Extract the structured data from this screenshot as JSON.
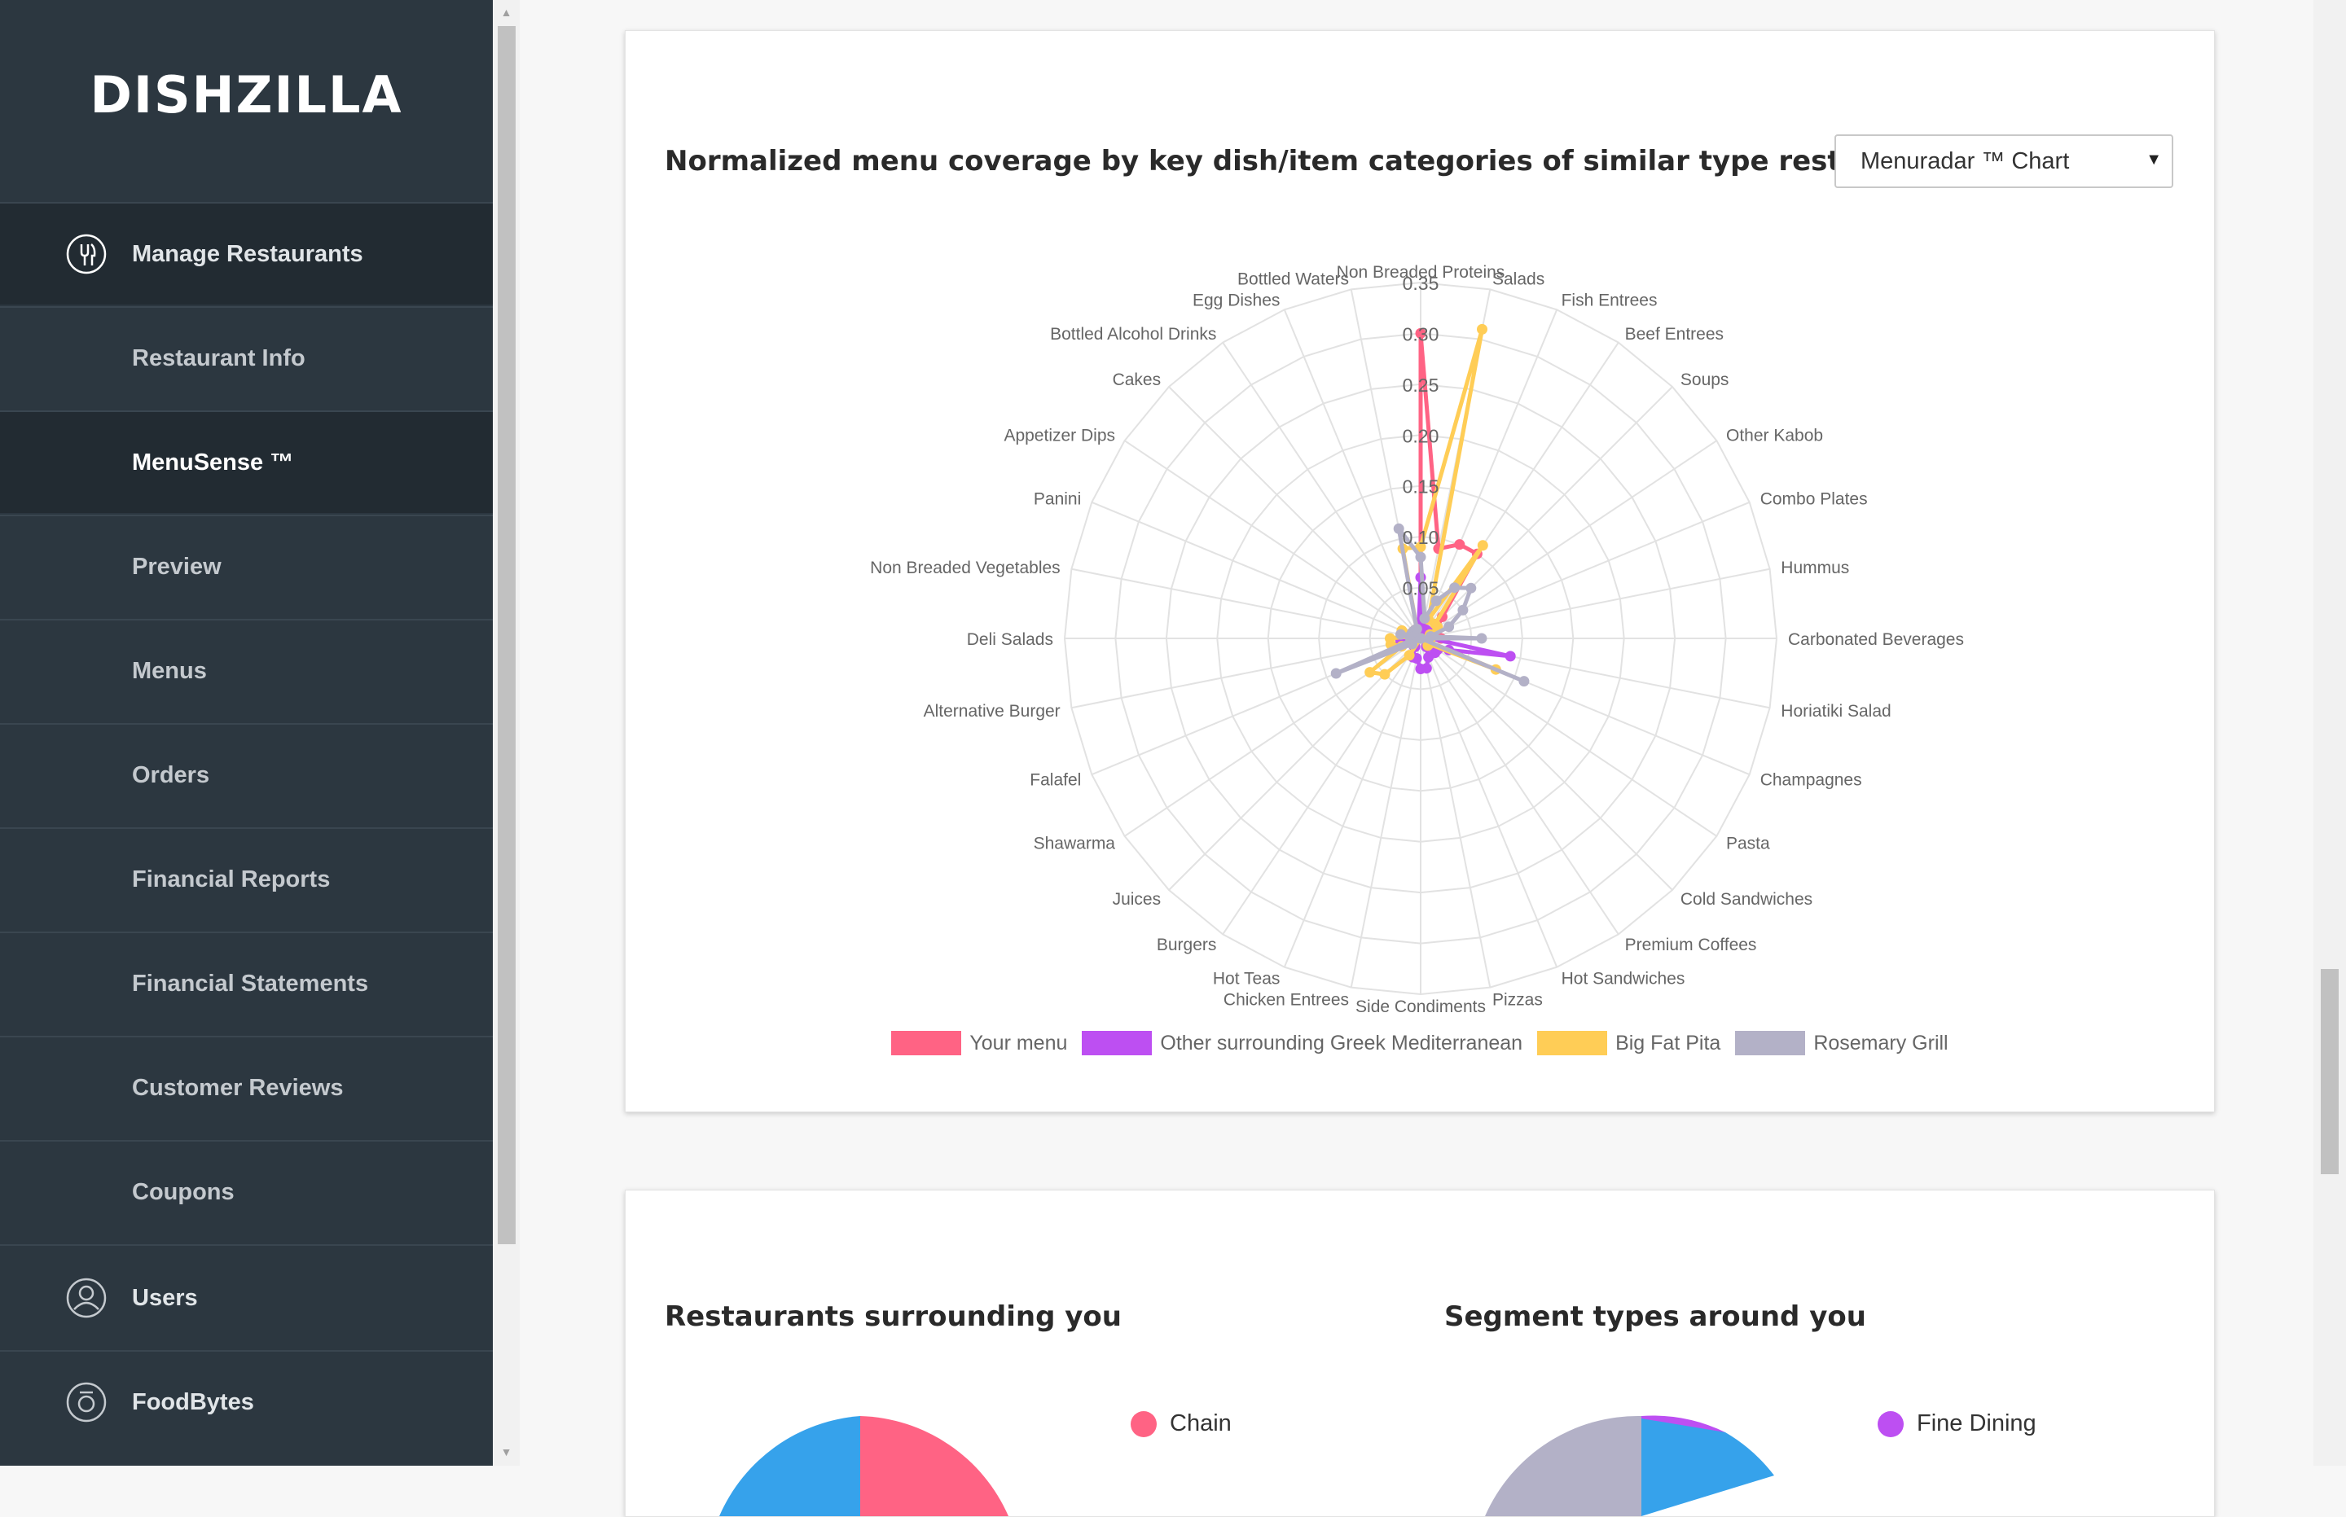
{
  "sidebar": {
    "logo": "DISHZILLA",
    "items": [
      {
        "label": "Manage Restaurants",
        "icon": "utensils-icon"
      },
      {
        "label": "Restaurant Info"
      },
      {
        "label": "MenuSense ™"
      },
      {
        "label": "Preview"
      },
      {
        "label": "Menus"
      },
      {
        "label": "Orders"
      },
      {
        "label": "Financial Reports"
      },
      {
        "label": "Financial Statements"
      },
      {
        "label": "Customer Reviews"
      },
      {
        "label": "Coupons"
      },
      {
        "label": "Users",
        "icon": "user-icon"
      },
      {
        "label": "FoodBytes",
        "icon": "camera-icon"
      }
    ]
  },
  "chart_card": {
    "title": "Normalized menu coverage by key dish/item categories of similar type restaurants",
    "select_value": "Menuradar ™ Chart"
  },
  "chart_data": {
    "type": "radar",
    "categories": [
      "Non Breaded Proteins",
      "Salads",
      "Fish Entrees",
      "Beef Entrees",
      "Soups",
      "Other Kabob",
      "Combo Plates",
      "Hummus",
      "Carbonated Beverages",
      "Horiatiki Salad",
      "Champagnes",
      "Pasta",
      "Cold Sandwiches",
      "Premium Coffees",
      "Hot Sandwiches",
      "Pizzas",
      "Side Condiments",
      "Chicken Entrees",
      "Hot Teas",
      "Burgers",
      "Juices",
      "Shawarma",
      "Falafel",
      "Alternative Burger",
      "Deli Salads",
      "Non Breaded Vegetables",
      "Panini",
      "Appetizer Dips",
      "Cakes",
      "Bottled Alcohol Drinks",
      "Egg Dishes",
      "Bottled Waters"
    ],
    "rlim": [
      0,
      0.35
    ],
    "ticks": [
      "0.05",
      "0.10",
      "0.15",
      "0.20",
      "0.25",
      "0.30",
      "0.35"
    ],
    "grid": true,
    "legend_position": "bottom",
    "series": [
      {
        "name": "Your menu",
        "color": "#ff6384",
        "values": [
          0.3,
          0.09,
          0.1,
          0.1,
          0.03,
          0.02,
          0.01,
          0.01,
          0.02,
          0.0,
          0.0,
          0.0,
          0.0,
          0.0,
          0.0,
          0.0,
          0.0,
          0.0,
          0.0,
          0.0,
          0.0,
          0.0,
          0.0,
          0.02,
          0.02,
          0.01,
          0.0,
          0.0,
          0.0,
          0.0,
          0.0,
          0.0
        ]
      },
      {
        "name": "Other surrounding Greek Mediterranean",
        "color": "#bd4ff2",
        "values": [
          0.06,
          0.01,
          0.01,
          0.01,
          0.01,
          0.01,
          0.01,
          0.01,
          0.01,
          0.09,
          0.03,
          0.02,
          0.02,
          0.01,
          0.02,
          0.03,
          0.03,
          0.02,
          0.02,
          0.01,
          0.01,
          0.01,
          0.01,
          0.02,
          0.02,
          0.01,
          0.01,
          0.01,
          0.01,
          0.01,
          0.01,
          0.01
        ]
      },
      {
        "name": "Big Fat Pita",
        "color": "#ffcd56",
        "values": [
          0.09,
          0.31,
          0.02,
          0.11,
          0.02,
          0.02,
          0.01,
          0.01,
          0.01,
          0.0,
          0.08,
          0.01,
          0.01,
          0.0,
          0.0,
          0.0,
          0.0,
          0.0,
          0.0,
          0.02,
          0.05,
          0.06,
          0.02,
          0.03,
          0.03,
          0.01,
          0.02,
          0.01,
          0.01,
          0.01,
          0.01,
          0.09
        ]
      },
      {
        "name": "Rosemary Grill",
        "color": "#b3b1c7",
        "values": [
          0.08,
          0.02,
          0.04,
          0.06,
          0.07,
          0.05,
          0.03,
          0.01,
          0.06,
          0.0,
          0.11,
          0.0,
          0.0,
          0.0,
          0.0,
          0.0,
          0.0,
          0.0,
          0.0,
          0.0,
          0.0,
          0.01,
          0.09,
          0.01,
          0.01,
          0.02,
          0.01,
          0.01,
          0.01,
          0.01,
          0.01,
          0.11
        ]
      }
    ]
  },
  "bottom_card": {
    "surround_title": "Restaurants surrounding you",
    "segment_title": "Segment types around you",
    "surround_legend": [
      {
        "label": "Chain",
        "color": "#ff6384"
      }
    ],
    "segment_legend": [
      {
        "label": "Fine Dining",
        "color": "#bd4ff2"
      }
    ]
  }
}
